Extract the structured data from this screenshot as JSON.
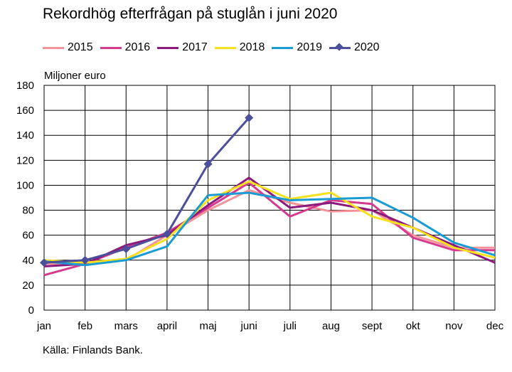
{
  "title": "Rekordhög efterfrågan på stuglån i juni 2020",
  "source": "Källa: Finlands Bank.",
  "chart_data": {
    "type": "line",
    "title": "Rekordhög efterfrågan på stuglån i juni 2020",
    "ylabel": "Miljoner euro",
    "xlabel": "",
    "categories": [
      "jan",
      "feb",
      "mars",
      "april",
      "maj",
      "juni",
      "juli",
      "aug",
      "sept",
      "okt",
      "nov",
      "dec"
    ],
    "ylim": [
      0,
      180
    ],
    "yticks": [
      0,
      20,
      40,
      60,
      80,
      100,
      120,
      140,
      160,
      180
    ],
    "grid": true,
    "legend": "top",
    "series": [
      {
        "name": "2015",
        "color": "#f4939a",
        "marker": "none",
        "values": [
          37,
          38,
          40,
          60,
          80,
          96,
          86,
          79,
          80,
          60,
          50,
          50
        ]
      },
      {
        "name": "2016",
        "color": "#d63a8f",
        "marker": "none",
        "values": [
          28,
          37,
          50,
          62,
          82,
          102,
          75,
          88,
          85,
          58,
          48,
          48
        ]
      },
      {
        "name": "2017",
        "color": "#8b1a7c",
        "marker": "none",
        "values": [
          35,
          37,
          52,
          60,
          84,
          106,
          82,
          86,
          80,
          66,
          52,
          38
        ]
      },
      {
        "name": "2018",
        "color": "#f5e11e",
        "marker": "none",
        "values": [
          40,
          38,
          41,
          57,
          88,
          103,
          89,
          94,
          75,
          66,
          50,
          42
        ]
      },
      {
        "name": "2019",
        "color": "#1a9bd4",
        "marker": "none",
        "values": [
          39,
          36,
          40,
          51,
          92,
          94,
          88,
          89,
          90,
          74,
          54,
          44
        ]
      },
      {
        "name": "2020",
        "color": "#4b4f9c",
        "marker": "diamond",
        "values": [
          38,
          40,
          49,
          61,
          117,
          154,
          null,
          null,
          null,
          null,
          null,
          null
        ]
      }
    ]
  }
}
